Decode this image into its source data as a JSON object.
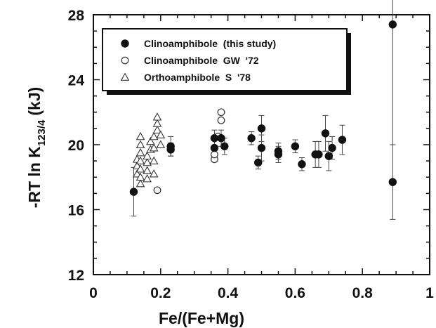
{
  "chart_data": {
    "type": "scatter",
    "title": "",
    "xlabel": "Fe/(Fe+Mg)",
    "ylabel": {
      "main": "-RT ln K",
      "subscript": "123/4",
      "unit": "(kJ)"
    },
    "xlim": [
      0,
      1
    ],
    "ylim": [
      12,
      28
    ],
    "xticks": [
      0,
      0.2,
      0.4,
      0.6,
      0.8,
      1
    ],
    "xtick_labels": [
      "0",
      "0.2",
      "0.4",
      "0.6",
      "0.8",
      "1"
    ],
    "yticks": [
      12,
      16,
      20,
      24,
      28
    ],
    "ytick_labels": [
      "12",
      "16",
      "20",
      "24",
      "28"
    ],
    "minor_x_step": 0.05,
    "minor_y_step": 1,
    "grid": false,
    "legend_position": "top-left",
    "series": [
      {
        "name": "Clinoamphibole  (this study)",
        "marker": "filled-circle",
        "points": [
          {
            "x": 0.12,
            "y": 17.1,
            "err": 1.5
          },
          {
            "x": 0.23,
            "y": 19.7,
            "err": 0.4
          },
          {
            "x": 0.23,
            "y": 19.9,
            "err": 0.6
          },
          {
            "x": 0.36,
            "y": 20.4,
            "err": 0.5
          },
          {
            "x": 0.36,
            "y": 19.8,
            "err": 0.5
          },
          {
            "x": 0.38,
            "y": 20.4,
            "err": 0.5
          },
          {
            "x": 0.39,
            "y": 19.9,
            "err": 0.5
          },
          {
            "x": 0.47,
            "y": 20.4,
            "err": 0.4
          },
          {
            "x": 0.49,
            "y": 18.9,
            "err": 0.4
          },
          {
            "x": 0.5,
            "y": 21.0,
            "err": 0.8
          },
          {
            "x": 0.5,
            "y": 19.8,
            "err": 0.8
          },
          {
            "x": 0.55,
            "y": 19.6,
            "err": 0.5
          },
          {
            "x": 0.55,
            "y": 19.4,
            "err": 0.5
          },
          {
            "x": 0.6,
            "y": 19.9,
            "err": 0.4
          },
          {
            "x": 0.62,
            "y": 18.8,
            "err": 0.4
          },
          {
            "x": 0.66,
            "y": 19.4,
            "err": 0.8
          },
          {
            "x": 0.67,
            "y": 19.4,
            "err": 0.8
          },
          {
            "x": 0.69,
            "y": 20.7,
            "err": 1.1
          },
          {
            "x": 0.7,
            "y": 19.3,
            "err": 0.9
          },
          {
            "x": 0.71,
            "y": 19.8,
            "err": 0.7
          },
          {
            "x": 0.74,
            "y": 20.3,
            "err": 0.9
          },
          {
            "x": 0.89,
            "y": 27.4,
            "err": 7.4
          },
          {
            "x": 0.89,
            "y": 17.7,
            "err": 2.3
          }
        ]
      },
      {
        "name": "Clinoamphibole  GW  '72",
        "marker": "open-circle",
        "points": [
          {
            "x": 0.19,
            "y": 17.2
          },
          {
            "x": 0.36,
            "y": 19.1
          },
          {
            "x": 0.36,
            "y": 19.4
          },
          {
            "x": 0.37,
            "y": 20.5
          },
          {
            "x": 0.38,
            "y": 21.5
          },
          {
            "x": 0.38,
            "y": 22.0
          }
        ]
      },
      {
        "name": "Orthoamphibole  S  '78",
        "marker": "open-triangle",
        "points": [
          {
            "x": 0.13,
            "y": 18.2
          },
          {
            "x": 0.13,
            "y": 18.7
          },
          {
            "x": 0.13,
            "y": 19.1
          },
          {
            "x": 0.14,
            "y": 17.6
          },
          {
            "x": 0.14,
            "y": 18.0
          },
          {
            "x": 0.14,
            "y": 18.5
          },
          {
            "x": 0.14,
            "y": 19.0
          },
          {
            "x": 0.14,
            "y": 19.5
          },
          {
            "x": 0.14,
            "y": 20.0
          },
          {
            "x": 0.14,
            "y": 20.5
          },
          {
            "x": 0.16,
            "y": 17.9
          },
          {
            "x": 0.16,
            "y": 18.4
          },
          {
            "x": 0.16,
            "y": 18.9
          },
          {
            "x": 0.16,
            "y": 19.3
          },
          {
            "x": 0.17,
            "y": 19.7
          },
          {
            "x": 0.17,
            "y": 20.2
          },
          {
            "x": 0.18,
            "y": 18.2
          },
          {
            "x": 0.18,
            "y": 19.0
          },
          {
            "x": 0.18,
            "y": 19.8
          },
          {
            "x": 0.18,
            "y": 20.5
          },
          {
            "x": 0.19,
            "y": 20.9
          },
          {
            "x": 0.19,
            "y": 21.3
          },
          {
            "x": 0.19,
            "y": 21.7
          },
          {
            "x": 0.2,
            "y": 20.0
          },
          {
            "x": 0.2,
            "y": 20.6
          }
        ]
      }
    ]
  }
}
